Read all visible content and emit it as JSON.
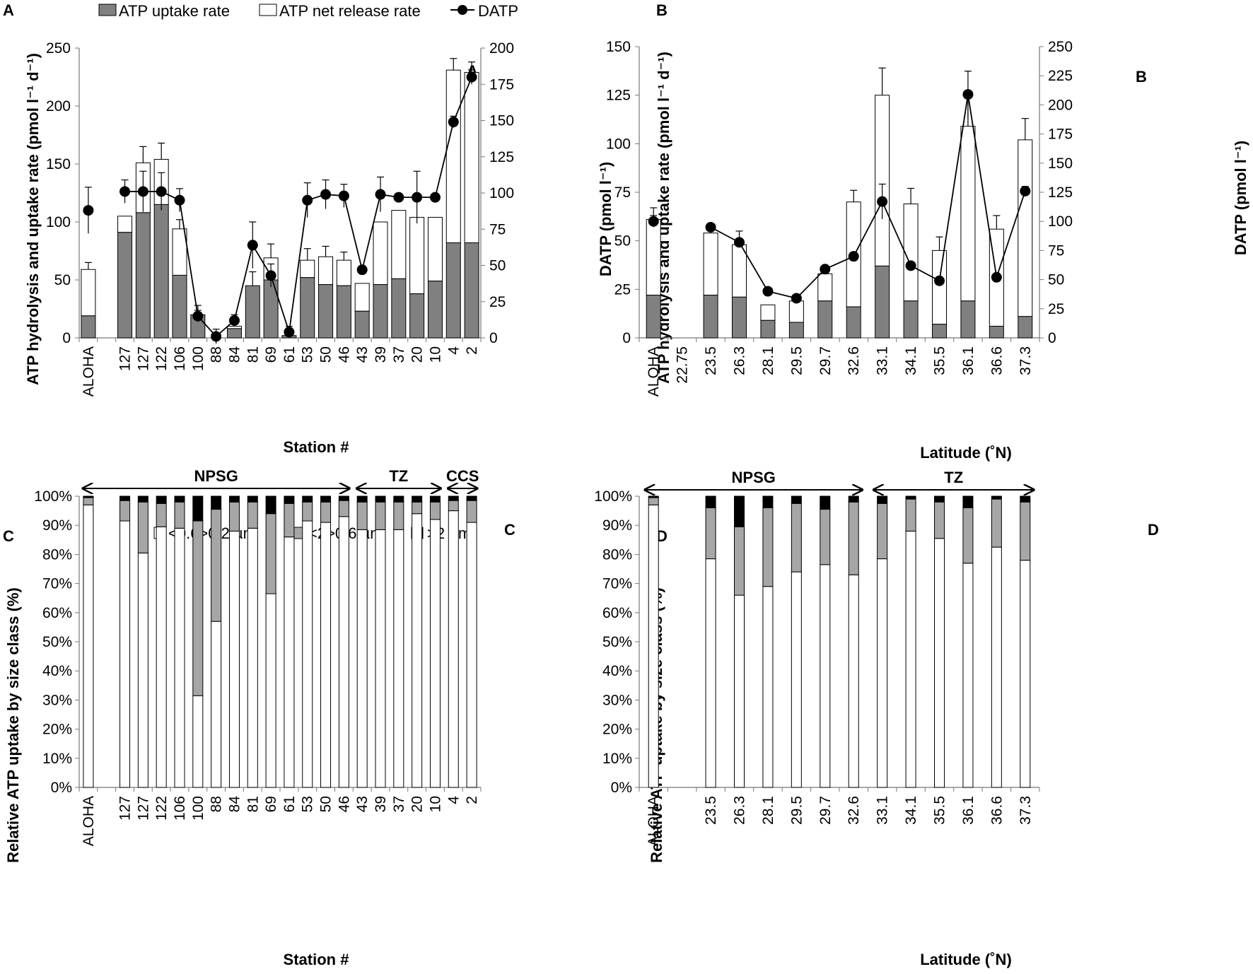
{
  "chart_data": [
    {
      "panel": "A",
      "type": "bar",
      "stacked": true,
      "panel_letter": "A",
      "inner_label": "A",
      "legend": [
        "ATP uptake rate",
        "ATP net release rate",
        "DATP"
      ],
      "xlabel": "Station #",
      "ylabel_left": "ATP hydrolysis and uptake rate (pmol l⁻¹ d⁻¹)",
      "ylabel_right": "DATP (pmol l⁻¹)",
      "ylim_left": [
        0,
        250
      ],
      "yticks_left": [
        0,
        50,
        100,
        150,
        200,
        250
      ],
      "ylim_right": [
        0,
        200
      ],
      "yticks_right": [
        0,
        25,
        50,
        75,
        100,
        125,
        150,
        175,
        200
      ],
      "categories": [
        "ALOHA",
        "",
        "127",
        "127",
        "122",
        "106",
        "100",
        "88",
        "84",
        "81",
        "69",
        "61",
        "53",
        "50",
        "46",
        "43",
        "39",
        "37",
        "20",
        "10",
        "4",
        "2"
      ],
      "series": [
        {
          "name": "ATP uptake rate",
          "values": [
            19,
            null,
            91,
            108,
            115,
            54,
            20,
            0,
            8,
            45,
            50,
            2,
            52,
            46,
            45,
            23,
            46,
            51,
            38,
            49,
            82,
            82
          ]
        },
        {
          "name": "ATP net release rate",
          "values": [
            40,
            null,
            14,
            43,
            39,
            40,
            0,
            0,
            2,
            0,
            19,
            0,
            15,
            24,
            22,
            24,
            54,
            59,
            66,
            55,
            149,
            147
          ]
        },
        {
          "name": "DATP",
          "values": [
            88,
            null,
            101,
            101,
            101,
            95,
            15,
            1,
            12,
            64,
            43,
            4,
            95,
            99,
            98,
            47,
            99,
            97,
            97,
            97,
            149,
            180
          ],
          "connect_from": 2
        }
      ],
      "bar_error": [
        6,
        null,
        0,
        14,
        14,
        8,
        8,
        0,
        3,
        12,
        12,
        0,
        10,
        9,
        7,
        0,
        0,
        0,
        0,
        0,
        10,
        9
      ],
      "datp_error": [
        16,
        null,
        8,
        14,
        13,
        8,
        4,
        5,
        4,
        16,
        8,
        4,
        12,
        10,
        8,
        0,
        12,
        0,
        18,
        0,
        4,
        5
      ],
      "regions": [
        {
          "label": "NPSG",
          "from": 0,
          "to": 14
        },
        {
          "label": "TZ",
          "from": 15,
          "to": 19
        },
        {
          "label": "CCS",
          "from": 20,
          "to": 21
        }
      ]
    },
    {
      "panel": "B",
      "type": "bar",
      "stacked": true,
      "panel_letter": "B",
      "inner_label": "B",
      "xlabel": "Latitude (˚N)",
      "ylabel_left": "ATP hydrolysis and uptake rate (pmol l⁻¹ d⁻¹)",
      "ylabel_right": "DATP (pmol l⁻¹)",
      "ylim_left": [
        0,
        150
      ],
      "yticks_left": [
        0,
        25,
        50,
        75,
        100,
        125,
        150
      ],
      "ylim_right": [
        0,
        250
      ],
      "yticks_right": [
        0,
        25,
        50,
        75,
        100,
        125,
        150,
        175,
        200,
        225,
        250
      ],
      "categories": [
        "ALOHA",
        "22.75",
        "23.5",
        "26.3",
        "28.1",
        "29.5",
        "29.7",
        "32.6",
        "33.1",
        "34.1",
        "35.5",
        "36.1",
        "36.6",
        "37.3"
      ],
      "series": [
        {
          "name": "ATP uptake rate",
          "values": [
            22,
            null,
            22,
            21,
            9,
            8,
            19,
            16,
            37,
            19,
            7,
            19,
            6,
            11
          ]
        },
        {
          "name": "ATP net release rate",
          "values": [
            39,
            null,
            32,
            27,
            8,
            11,
            14,
            54,
            88,
            50,
            38,
            90,
            50,
            91
          ]
        },
        {
          "name": "DATP",
          "values": [
            100,
            null,
            95,
            82,
            40,
            34,
            59,
            70,
            117,
            62,
            49,
            209,
            52,
            126
          ],
          "connect_from": 2
        }
      ],
      "bar_error": [
        6,
        null,
        0,
        7,
        0,
        2,
        0,
        6,
        14,
        8,
        7,
        16,
        7,
        11
      ],
      "datp_error": [
        5,
        null,
        0,
        0,
        0,
        0,
        0,
        0,
        15,
        0,
        0,
        20,
        0,
        4
      ],
      "regions": [
        {
          "label": "NPSG",
          "from": 0,
          "to": 7
        },
        {
          "label": "TZ",
          "from": 8,
          "to": 13
        }
      ]
    },
    {
      "panel": "C",
      "type": "bar",
      "stacked": true,
      "percent": true,
      "panel_letter": "C",
      "inner_label": "C",
      "legend": [
        "<0.6>0.2 µm",
        "<2>0.6 µm",
        ">2 µm"
      ],
      "xlabel": "Station #",
      "ylabel": "Relative ATP uptake by size class (%)",
      "ylim": [
        0,
        100
      ],
      "yticks": [
        "0%",
        "10%",
        "20%",
        "30%",
        "40%",
        "50%",
        "60%",
        "70%",
        "80%",
        "90%",
        "100%"
      ],
      "categories": [
        "ALOHA",
        "",
        "127",
        "127",
        "122",
        "106",
        "100",
        "88",
        "84",
        "81",
        "69",
        "61",
        "53",
        "50",
        "46",
        "43",
        "39",
        "37",
        "20",
        "10",
        "4",
        "2"
      ],
      "series": [
        {
          "name": "<0.6>0.2 µm",
          "values": [
            97,
            null,
            91.5,
            80.5,
            89.5,
            89,
            31.5,
            57,
            88,
            89,
            66.5,
            86,
            91.5,
            91,
            93,
            88.5,
            88.5,
            88.5,
            94,
            92,
            95,
            91
          ]
        },
        {
          "name": "<2>0.6 µm",
          "values": [
            2.5,
            null,
            7,
            17.5,
            8,
            9,
            60,
            38.5,
            10,
            9,
            27.5,
            11.5,
            6.5,
            7,
            5.5,
            9.5,
            9.5,
            9.5,
            4,
            6,
            3.5,
            7.5
          ]
        },
        {
          "name": ">2 µm",
          "values": [
            0.5,
            null,
            1.5,
            2,
            2.5,
            2,
            8.5,
            4.5,
            2,
            2,
            6,
            2.5,
            2,
            2,
            1.5,
            2,
            2,
            2,
            2,
            2,
            1.5,
            1.5
          ]
        }
      ]
    },
    {
      "panel": "D",
      "type": "bar",
      "stacked": true,
      "percent": true,
      "panel_letter": "D",
      "inner_label": "D",
      "xlabel": "Latitude (˚N)",
      "ylabel": "Relative ATP uptake by size class (%)",
      "ylim": [
        0,
        100
      ],
      "yticks": [
        "0%",
        "10%",
        "20%",
        "30%",
        "40%",
        "50%",
        "60%",
        "70%",
        "80%",
        "90%",
        "100%"
      ],
      "categories": [
        "ALOHA",
        "",
        "23.5",
        "26.3",
        "28.1",
        "29.5",
        "29.7",
        "32.6",
        "33.1",
        "34.1",
        "35.5",
        "36.1",
        "36.6",
        "37.3"
      ],
      "series": [
        {
          "name": "<0.6>0.2 µm",
          "values": [
            97,
            null,
            78.5,
            66,
            69,
            74,
            76.5,
            73,
            78.5,
            88,
            85.5,
            77,
            82.5,
            78
          ]
        },
        {
          "name": "<2>0.6 µm",
          "values": [
            2.5,
            null,
            17.5,
            23.5,
            27,
            23.5,
            19,
            25,
            19,
            11,
            12.5,
            19,
            16.5,
            20
          ]
        },
        {
          "name": ">2 µm",
          "values": [
            0.5,
            null,
            4,
            10.5,
            4,
            2.5,
            4.5,
            2,
            2.5,
            1,
            2,
            4,
            1,
            2
          ]
        }
      ]
    }
  ]
}
